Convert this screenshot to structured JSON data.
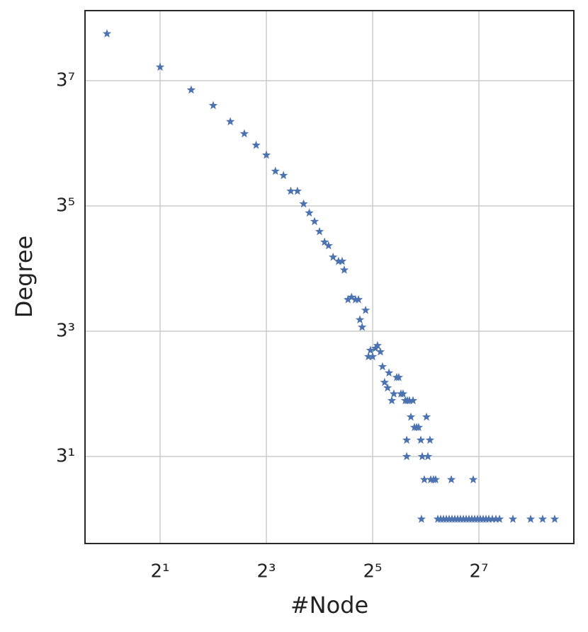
{
  "chart_data": {
    "type": "scatter",
    "x_label": "#Node",
    "y_label": "Degree",
    "xscale": "log",
    "xbase": 2,
    "yscale": "log",
    "ybase": 3,
    "grid": true,
    "color": "#4c72b0",
    "marker": "star",
    "xlim": [
      0.751,
      441.6
    ],
    "ylim": [
      0.652,
      7471
    ],
    "xticks": [
      {
        "value": 2,
        "label": "2¹"
      },
      {
        "value": 8,
        "label": "2³"
      },
      {
        "value": 32,
        "label": "2⁵"
      },
      {
        "value": 128,
        "label": "2⁷"
      }
    ],
    "yticks": [
      {
        "value": 3,
        "label": "3¹"
      },
      {
        "value": 27,
        "label": "3³"
      },
      {
        "value": 243,
        "label": "3⁵"
      },
      {
        "value": 2187,
        "label": "3⁷"
      }
    ],
    "x": [
      1,
      2,
      3,
      4,
      5,
      6,
      7,
      8,
      9,
      10,
      11,
      12,
      13,
      14,
      15,
      16,
      17.1,
      18,
      19.1,
      20.5,
      21.5,
      22.1,
      23.2,
      24.3,
      25.6,
      26.6,
      27.1,
      27.9,
      29.2,
      30.3,
      31.1,
      32,
      33.2,
      34.1,
      35.4,
      36.4,
      37.4,
      38.9,
      39.6,
      41.1,
      42.2,
      43.8,
      45,
      46.3,
      47.6,
      49,
      50.3,
      51.7,
      52.7,
      54.2,
      55.2,
      56.8,
      58.3,
      60,
      61.1,
      62.8,
      64.6,
      65.8,
      67.6,
      68.3,
      70.8,
      72.8,
      49.9,
      49.9,
      89.3,
      118.9,
      60.5,
      74.9,
      77.7,
      80.6,
      83.7,
      86.8,
      90.1,
      93.5,
      97,
      100.6,
      104.5,
      108.4,
      112.5,
      116.7,
      121.1,
      125.6,
      130.4,
      135.3,
      140.4,
      145.7,
      152.5,
      159.8,
      167.4,
      199.5,
      251.3,
      294,
      344
    ],
    "values": [
      4983,
      2774,
      1858,
      1414,
      1066,
      862,
      705,
      593,
      447,
      415,
      315,
      315,
      252,
      215,
      185,
      155,
      129,
      121,
      99,
      92,
      92,
      79,
      47,
      49,
      47,
      47,
      33,
      29,
      39,
      17.3,
      19.3,
      17.3,
      20,
      21,
      18.8,
      14.5,
      11,
      10,
      13,
      8,
      9,
      12,
      12,
      9,
      9,
      8,
      8,
      8,
      6,
      8,
      5,
      5,
      5,
      4,
      3,
      2,
      6,
      3,
      4,
      2,
      2,
      2,
      4,
      3,
      2,
      2,
      1,
      1,
      1,
      1,
      1,
      1,
      1,
      1,
      1,
      1,
      1,
      1,
      1,
      1,
      1,
      1,
      1,
      1,
      1,
      1,
      1,
      1,
      1,
      1,
      1,
      1,
      1
    ]
  }
}
